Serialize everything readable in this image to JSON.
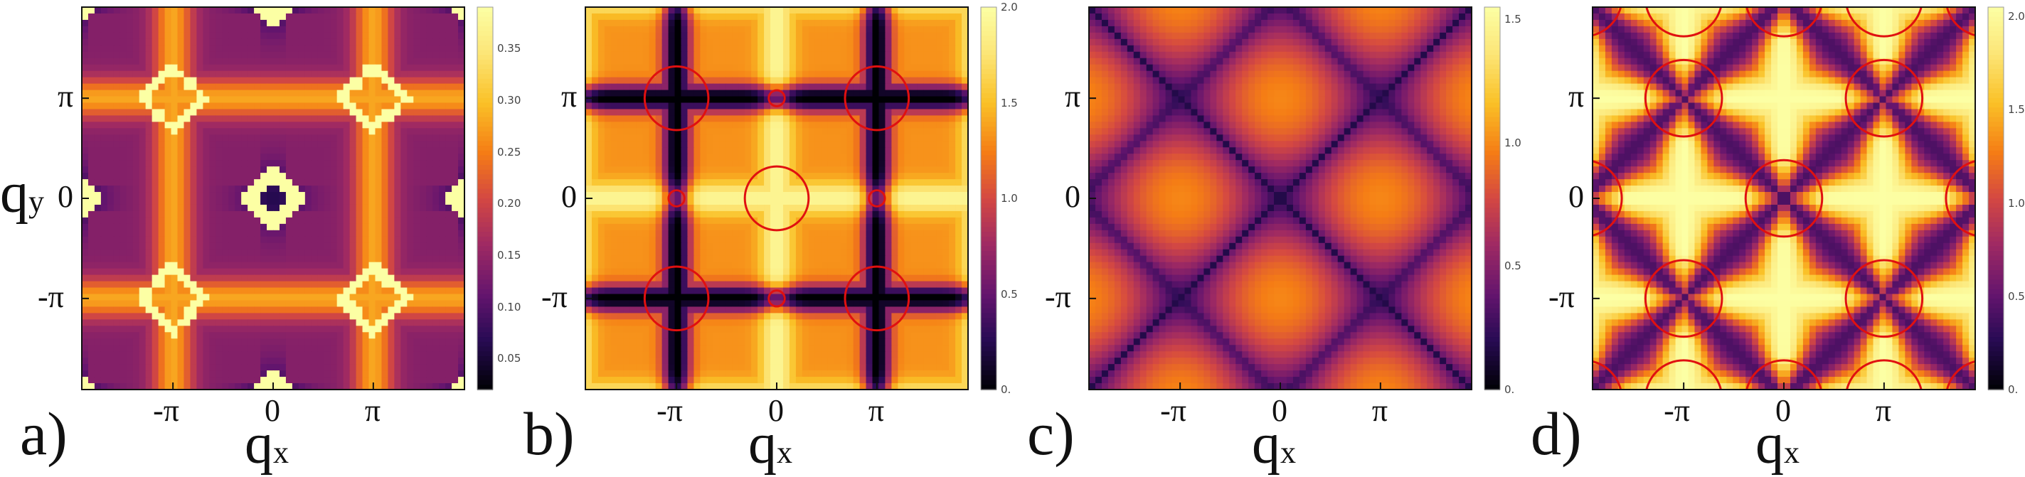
{
  "figure": {
    "tick_labels": {
      "x": [
        "-π",
        "0",
        "π"
      ],
      "y": [
        "π",
        "0",
        "-π"
      ]
    },
    "axis_labels": {
      "x": "q",
      "x_sub": "x",
      "y": "q",
      "y_sub": "y"
    }
  },
  "chart_data": [
    {
      "panel": "a)",
      "type": "heatmap",
      "colormap": "inferno",
      "xlabel": "qx",
      "ylabel": "qy",
      "x_ticks": [
        "-π",
        "0",
        "π"
      ],
      "y_ticks": [
        "π",
        "0",
        "-π"
      ],
      "xlim": [
        -6.0,
        6.0
      ],
      "ylim": [
        -6.0,
        6.0
      ],
      "colorbar": {
        "ticks": [
          "0.35",
          "0.30",
          "0.25",
          "0.20",
          "0.15",
          "0.10",
          "0.05"
        ],
        "range": [
          0.02,
          0.39
        ]
      },
      "red_contours": false
    },
    {
      "panel": "b)",
      "type": "heatmap",
      "colormap": "inferno",
      "xlabel": "qx",
      "ylabel": "",
      "x_ticks": [
        "-π",
        "0",
        "π"
      ],
      "y_ticks": [
        "π",
        "0",
        "-π"
      ],
      "xlim": [
        -6.0,
        6.0
      ],
      "ylim": [
        -6.0,
        6.0
      ],
      "colorbar": {
        "ticks": [
          "2.0",
          "1.5",
          "1.0",
          "0.5",
          "0."
        ],
        "range": [
          0.0,
          2.0
        ]
      },
      "red_contours": true
    },
    {
      "panel": "c)",
      "type": "heatmap",
      "colormap": "inferno",
      "xlabel": "qx",
      "ylabel": "",
      "x_ticks": [
        "-π",
        "0",
        "π"
      ],
      "y_ticks": [
        "π",
        "0",
        "-π"
      ],
      "xlim": [
        -6.0,
        6.0
      ],
      "ylim": [
        -6.0,
        6.0
      ],
      "colorbar": {
        "ticks": [
          "1.5",
          "1.0",
          "0.5",
          "0."
        ],
        "range": [
          0.0,
          1.55
        ]
      },
      "red_contours": false
    },
    {
      "panel": "d)",
      "type": "heatmap",
      "colormap": "inferno",
      "xlabel": "qx",
      "ylabel": "",
      "x_ticks": [
        "-π",
        "0",
        "π"
      ],
      "y_ticks": [
        "π",
        "0",
        "-π"
      ],
      "xlim": [
        -6.0,
        6.0
      ],
      "ylim": [
        -6.0,
        6.0
      ],
      "colorbar": {
        "ticks": [
          "2.0",
          "1.5",
          "1.0",
          "0.5",
          "0."
        ],
        "range": [
          0.0,
          2.05
        ]
      },
      "red_contours": true
    }
  ]
}
